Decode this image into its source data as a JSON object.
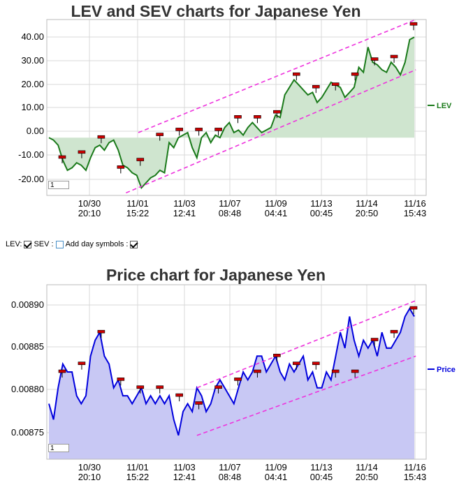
{
  "charts": {
    "top": {
      "title": "LEV and SEV charts for Japanese Yen",
      "legend": "LEV",
      "page_input": "1"
    },
    "bottom": {
      "title": "Price chart for Japanese Yen",
      "legend": "Price",
      "page_input": "1"
    }
  },
  "controls": {
    "lev_label": "LEV:",
    "sev_label": "SEV :",
    "day_label": "Add day symbols :",
    "lev_checked": true,
    "sev_checked": false,
    "day_checked": true
  },
  "colors": {
    "lev_line": "#1a7a1a",
    "lev_fill": "#cfe5cf",
    "price_line": "#0000dd",
    "price_fill": "#c8c8f4",
    "channel": "#ee33dd",
    "marker": "#cc0000",
    "grid": "#d9d9d9"
  },
  "chart_data": [
    {
      "type": "area",
      "title": "LEV and SEV charts for Japanese Yen",
      "xticks": [
        {
          "date": "10/30",
          "time": "20:10"
        },
        {
          "date": "11/01",
          "time": "15:22"
        },
        {
          "date": "11/03",
          "time": "12:41"
        },
        {
          "date": "11/07",
          "time": "08:48"
        },
        {
          "date": "11/09",
          "time": "04:41"
        },
        {
          "date": "11/13",
          "time": "00:45"
        },
        {
          "date": "11/14",
          "time": "20:50"
        },
        {
          "date": "11/16",
          "time": "15:43"
        }
      ],
      "yticks": [
        "-20.00",
        "-10.00",
        "0.00",
        "10.00",
        "20.00",
        "30.00",
        "40.00"
      ],
      "ylim": [
        -23,
        47
      ],
      "grid": true,
      "legend_position": "right",
      "series": [
        {
          "name": "LEV",
          "x": [
            0,
            0.3,
            0.6,
            0.9,
            1.2,
            1.5,
            1.8,
            2.1,
            2.4,
            2.7,
            3.0,
            3.3,
            3.6,
            3.9,
            4.2,
            4.5,
            4.8,
            5.1,
            5.4,
            5.7,
            6.0,
            6.3,
            6.6,
            6.9,
            7.2,
            7.5,
            7.8,
            8.1,
            8.4,
            8.7,
            9.0,
            9.3,
            9.6,
            9.9,
            10.2,
            10.5,
            10.8,
            11.1,
            11.4,
            11.7,
            12.0,
            12.3,
            12.6,
            12.9,
            13.2,
            13.5,
            13.8,
            14.1,
            14.4,
            14.7,
            15.0,
            15.3,
            15.6,
            15.9,
            16.2,
            16.5,
            16.8,
            17.1,
            17.4,
            17.7,
            18.0,
            18.3,
            18.6,
            18.9,
            19.2,
            19.5,
            19.8,
            20.1,
            20.4,
            20.7,
            21.0,
            21.3,
            21.6,
            21.9,
            22.2,
            22.5,
            22.8,
            23.1,
            23.4,
            23.7
          ],
          "values": [
            0,
            -1,
            -3,
            -9,
            -13,
            -12,
            -10,
            -11,
            -13,
            -8,
            -4,
            -3,
            -5,
            -2,
            -1,
            -5,
            -11,
            -12,
            -14,
            -15,
            -20,
            -18,
            -16,
            -15,
            -13,
            -14,
            -2,
            -4,
            0,
            1,
            2,
            -4,
            -8,
            0,
            2,
            -2,
            1,
            0,
            4,
            6,
            2,
            3,
            1,
            4,
            6,
            4,
            2,
            3,
            4,
            9,
            8,
            17,
            20,
            23,
            21,
            19,
            17,
            18,
            14,
            16,
            19,
            22,
            21,
            20,
            16,
            18,
            20,
            28,
            26,
            36,
            30,
            29,
            27,
            26,
            30,
            28,
            25,
            30,
            39,
            40
          ],
          "markers": [
            -8,
            -6,
            0,
            -12,
            -9,
            1,
            3,
            3,
            3,
            8,
            8,
            10,
            25,
            20,
            21,
            25,
            31,
            32,
            45
          ]
        }
      ],
      "channel": {
        "upper": [
          [
            5.8,
            2
          ],
          [
            23.8,
            47
          ]
        ],
        "lower": [
          [
            5,
            -22
          ],
          [
            23.8,
            27
          ]
        ]
      }
    },
    {
      "type": "area",
      "title": "Price chart for Japanese Yen",
      "xticks": [
        {
          "date": "10/30",
          "time": "20:10"
        },
        {
          "date": "11/01",
          "time": "15:22"
        },
        {
          "date": "11/03",
          "time": "12:41"
        },
        {
          "date": "11/07",
          "time": "08:48"
        },
        {
          "date": "11/09",
          "time": "04:41"
        },
        {
          "date": "11/13",
          "time": "00:45"
        },
        {
          "date": "11/14",
          "time": "20:50"
        },
        {
          "date": "11/16",
          "time": "15:43"
        }
      ],
      "yticks": [
        "0.00875",
        "0.00880",
        "0.00885",
        "0.00890"
      ],
      "ylim": [
        0.00871,
        0.00893
      ],
      "grid": true,
      "legend_position": "right",
      "series": [
        {
          "name": "Price",
          "x": [
            0,
            0.3,
            0.6,
            0.9,
            1.2,
            1.5,
            1.8,
            2.1,
            2.4,
            2.7,
            3.0,
            3.3,
            3.6,
            3.9,
            4.2,
            4.5,
            4.8,
            5.1,
            5.4,
            5.7,
            6.0,
            6.3,
            6.6,
            6.9,
            7.2,
            7.5,
            7.8,
            8.1,
            8.4,
            8.7,
            9.0,
            9.3,
            9.6,
            9.9,
            10.2,
            10.5,
            10.8,
            11.1,
            11.4,
            11.7,
            12.0,
            12.3,
            12.6,
            12.9,
            13.2,
            13.5,
            13.8,
            14.1,
            14.4,
            14.7,
            15.0,
            15.3,
            15.6,
            15.9,
            16.2,
            16.5,
            16.8,
            17.1,
            17.4,
            17.7,
            18.0,
            18.3,
            18.6,
            18.9,
            19.2,
            19.5,
            19.8,
            20.1,
            20.4,
            20.7,
            21.0,
            21.3,
            21.6,
            21.9,
            22.2,
            22.5,
            22.8,
            23.1,
            23.4,
            23.7
          ],
          "values": [
            0.00878,
            0.00876,
            0.0088,
            0.00883,
            0.00882,
            0.00882,
            0.00879,
            0.00878,
            0.00879,
            0.00884,
            0.00886,
            0.00887,
            0.00884,
            0.00883,
            0.0088,
            0.00881,
            0.00879,
            0.00879,
            0.00878,
            0.00879,
            0.0088,
            0.00878,
            0.00879,
            0.00878,
            0.00879,
            0.00878,
            0.00879,
            0.00876,
            0.00874,
            0.00877,
            0.00878,
            0.00877,
            0.0088,
            0.00879,
            0.00877,
            0.00878,
            0.0088,
            0.00881,
            0.0088,
            0.00879,
            0.00878,
            0.0088,
            0.00882,
            0.00881,
            0.00882,
            0.00884,
            0.00884,
            0.00882,
            0.00883,
            0.00884,
            0.00882,
            0.00881,
            0.00883,
            0.00882,
            0.00883,
            0.00884,
            0.00881,
            0.00882,
            0.0088,
            0.0088,
            0.00882,
            0.00881,
            0.00884,
            0.00887,
            0.00885,
            0.00889,
            0.00886,
            0.00884,
            0.00886,
            0.00885,
            0.00886,
            0.00884,
            0.00887,
            0.00885,
            0.00885,
            0.00886,
            0.00887,
            0.00889,
            0.0089,
            0.00889
          ],
          "markers": [
            0.00882,
            0.00883,
            0.00887,
            0.00881,
            0.0088,
            0.0088,
            0.00879,
            0.00878,
            0.0088,
            0.00881,
            0.00882,
            0.00884,
            0.00883,
            0.00883,
            0.00882,
            0.00882,
            0.00886,
            0.00887,
            0.0089
          ]
        }
      ],
      "channel": {
        "upper": [
          [
            9.6,
            0.0088
          ],
          [
            23.8,
            0.00891
          ]
        ],
        "lower": [
          [
            9.6,
            0.00874
          ],
          [
            23.8,
            0.00884
          ]
        ]
      }
    }
  ]
}
